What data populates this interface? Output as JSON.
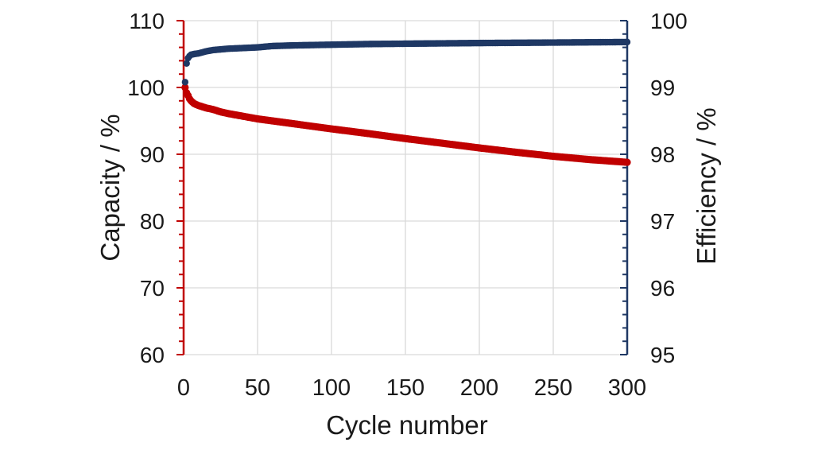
{
  "chart_data": {
    "type": "scatter",
    "title": "",
    "legend_position": "none",
    "grid": true,
    "grid_color": "#d9d9d9",
    "text_color": "#1a1a1a",
    "background_color": "#ffffff",
    "x": {
      "label": "Cycle number",
      "min": 0,
      "max": 300,
      "ticks": [
        0,
        50,
        100,
        150,
        200,
        250,
        300
      ]
    },
    "y_left": {
      "label": "Capacity / %",
      "min": 60,
      "max": 110,
      "major_step": 10,
      "minor_step": 2,
      "ticks": [
        60,
        70,
        80,
        90,
        100,
        110
      ],
      "axis_color": "#c00000"
    },
    "y_right": {
      "label": "Efficiency / %",
      "min": 95,
      "max": 100,
      "major_step": 1,
      "minor_step": 0.2,
      "ticks": [
        95,
        96,
        97,
        98,
        99,
        100
      ],
      "axis_color": "#1f3864"
    },
    "series": [
      {
        "name": "Capacity",
        "axis": "left",
        "color": "#c00000",
        "marker": "circle",
        "points": [
          [
            1,
            100.0
          ],
          [
            2,
            99.2
          ],
          [
            3,
            98.8
          ],
          [
            4,
            98.3
          ],
          [
            5,
            98.0
          ],
          [
            7,
            97.6
          ],
          [
            10,
            97.3
          ],
          [
            15,
            96.95
          ],
          [
            20,
            96.7
          ],
          [
            25,
            96.35
          ],
          [
            30,
            96.1
          ],
          [
            40,
            95.7
          ],
          [
            50,
            95.3
          ],
          [
            60,
            95.0
          ],
          [
            75,
            94.55
          ],
          [
            100,
            93.8
          ],
          [
            125,
            93.1
          ],
          [
            150,
            92.35
          ],
          [
            175,
            91.65
          ],
          [
            200,
            90.95
          ],
          [
            225,
            90.3
          ],
          [
            250,
            89.7
          ],
          [
            275,
            89.2
          ],
          [
            300,
            88.8
          ]
        ]
      },
      {
        "name": "Efficiency",
        "axis": "right",
        "color": "#1f3864",
        "marker": "circle",
        "points": [
          [
            1,
            99.08
          ],
          [
            2,
            99.36
          ],
          [
            3,
            99.44
          ],
          [
            4,
            99.47
          ],
          [
            5,
            99.49
          ],
          [
            7,
            99.5
          ],
          [
            10,
            99.51
          ],
          [
            15,
            99.54
          ],
          [
            20,
            99.56
          ],
          [
            25,
            99.57
          ],
          [
            30,
            99.58
          ],
          [
            40,
            99.59
          ],
          [
            50,
            99.6
          ],
          [
            60,
            99.62
          ],
          [
            75,
            99.63
          ],
          [
            100,
            99.64
          ],
          [
            125,
            99.65
          ],
          [
            150,
            99.655
          ],
          [
            200,
            99.665
          ],
          [
            250,
            99.672
          ],
          [
            300,
            99.68
          ]
        ]
      }
    ]
  }
}
